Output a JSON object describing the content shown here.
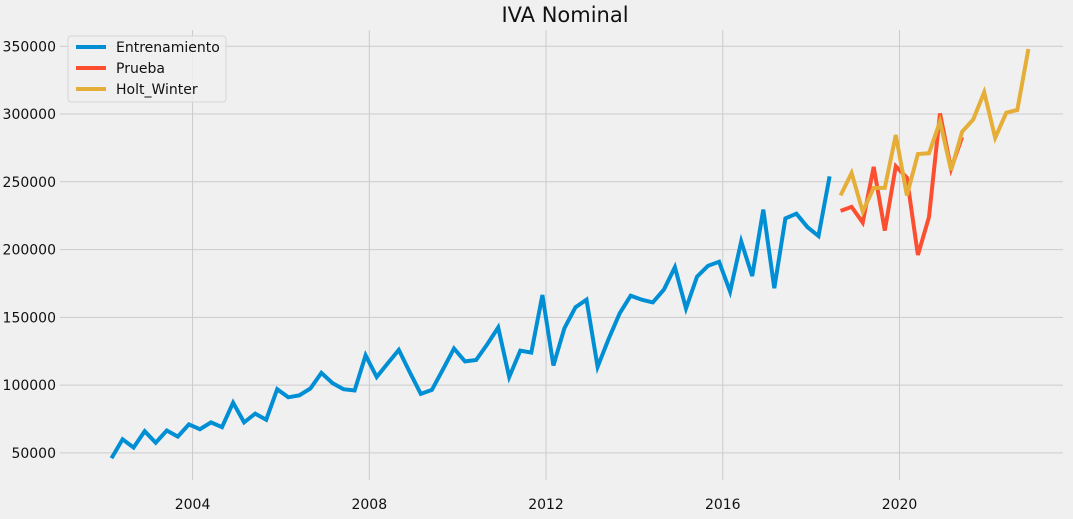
{
  "chart_data": {
    "type": "line",
    "title": "IVA Nominal",
    "xlabel": "",
    "ylabel": "",
    "xlim": [
      2001.0,
      2023.7
    ],
    "ylim": [
      30000,
      362000
    ],
    "x_ticks": [
      2004,
      2008,
      2012,
      2016,
      2020
    ],
    "x_tick_labels": [
      "2004",
      "2008",
      "2012",
      "2016",
      "2020"
    ],
    "y_ticks": [
      50000,
      100000,
      150000,
      200000,
      250000,
      300000,
      350000
    ],
    "y_tick_labels": [
      "50000",
      "100000",
      "150000",
      "200000",
      "250000",
      "300000",
      "350000"
    ],
    "grid": true,
    "legend_position": "top-left",
    "series": [
      {
        "name": "Entrenamiento",
        "color": "#008fd5",
        "points": [
          [
            "2002-03",
            46000
          ],
          [
            "2002-06",
            60000
          ],
          [
            "2002-09",
            54000
          ],
          [
            "2002-12",
            66000
          ],
          [
            "2003-03",
            57500
          ],
          [
            "2003-06",
            66500
          ],
          [
            "2003-09",
            62000
          ],
          [
            "2003-12",
            71000
          ],
          [
            "2004-03",
            67500
          ],
          [
            "2004-06",
            72500
          ],
          [
            "2004-09",
            69000
          ],
          [
            "2004-12",
            87000
          ],
          [
            "2005-03",
            72500
          ],
          [
            "2005-06",
            79000
          ],
          [
            "2005-09",
            74500
          ],
          [
            "2005-12",
            97000
          ],
          [
            "2006-03",
            91000
          ],
          [
            "2006-06",
            92500
          ],
          [
            "2006-09",
            97500
          ],
          [
            "2006-12",
            109000
          ],
          [
            "2007-03",
            101500
          ],
          [
            "2007-06",
            97000
          ],
          [
            "2007-09",
            96000
          ],
          [
            "2007-12",
            122000
          ],
          [
            "2008-03",
            106000
          ],
          [
            "2008-06",
            116000
          ],
          [
            "2008-09",
            126000
          ],
          [
            "2008-12",
            109500
          ],
          [
            "2009-03",
            93500
          ],
          [
            "2009-06",
            96500
          ],
          [
            "2009-09",
            111500
          ],
          [
            "2009-12",
            127000
          ],
          [
            "2010-03",
            117500
          ],
          [
            "2010-06",
            118500
          ],
          [
            "2010-09",
            130000
          ],
          [
            "2010-12",
            142500
          ],
          [
            "2011-03",
            106000
          ],
          [
            "2011-06",
            125500
          ],
          [
            "2011-09",
            124000
          ],
          [
            "2011-12",
            166500
          ],
          [
            "2012-03",
            114500
          ],
          [
            "2012-06",
            142000
          ],
          [
            "2012-09",
            157500
          ],
          [
            "2012-12",
            163000
          ],
          [
            "2013-03",
            113500
          ],
          [
            "2013-06",
            134000
          ],
          [
            "2013-09",
            153000
          ],
          [
            "2013-12",
            166000
          ],
          [
            "2014-03",
            163000
          ],
          [
            "2014-06",
            161000
          ],
          [
            "2014-09",
            170500
          ],
          [
            "2014-12",
            187000
          ],
          [
            "2015-03",
            156500
          ],
          [
            "2015-06",
            180000
          ],
          [
            "2015-09",
            188000
          ],
          [
            "2015-12",
            191000
          ],
          [
            "2016-03",
            169000
          ],
          [
            "2016-06",
            206000
          ],
          [
            "2016-09",
            180500
          ],
          [
            "2016-12",
            229500
          ],
          [
            "2017-03",
            171500
          ],
          [
            "2017-06",
            223000
          ],
          [
            "2017-09",
            226500
          ],
          [
            "2017-12",
            216500
          ],
          [
            "2018-03",
            210000
          ],
          [
            "2018-06",
            254000
          ]
        ]
      },
      {
        "name": "Prueba",
        "color": "#fc4f30",
        "points": [
          [
            "2018-09",
            228500
          ],
          [
            "2018-12",
            231500
          ],
          [
            "2019-03",
            220000
          ],
          [
            "2019-06",
            261000
          ],
          [
            "2019-09",
            214000
          ],
          [
            "2019-12",
            261500
          ],
          [
            "2020-03",
            253000
          ],
          [
            "2020-06",
            196000
          ],
          [
            "2020-09",
            224000
          ],
          [
            "2020-12",
            300500
          ],
          [
            "2021-03",
            259500
          ],
          [
            "2021-06",
            283000
          ]
        ]
      },
      {
        "name": "Holt_Winter",
        "color": "#e5ae38",
        "points": [
          [
            "2018-09",
            240000
          ],
          [
            "2018-12",
            256500
          ],
          [
            "2019-03",
            228000
          ],
          [
            "2019-06",
            245500
          ],
          [
            "2019-09",
            245500
          ],
          [
            "2019-12",
            284500
          ],
          [
            "2020-03",
            240000
          ],
          [
            "2020-06",
            270500
          ],
          [
            "2020-09",
            271000
          ],
          [
            "2020-12",
            294500
          ],
          [
            "2021-03",
            258500
          ],
          [
            "2021-06",
            287000
          ],
          [
            "2021-09",
            296000
          ],
          [
            "2021-12",
            316000
          ],
          [
            "2022-03",
            282500
          ],
          [
            "2022-06",
            301000
          ],
          [
            "2022-09",
            303000
          ],
          [
            "2022-12",
            348000
          ]
        ]
      }
    ]
  }
}
